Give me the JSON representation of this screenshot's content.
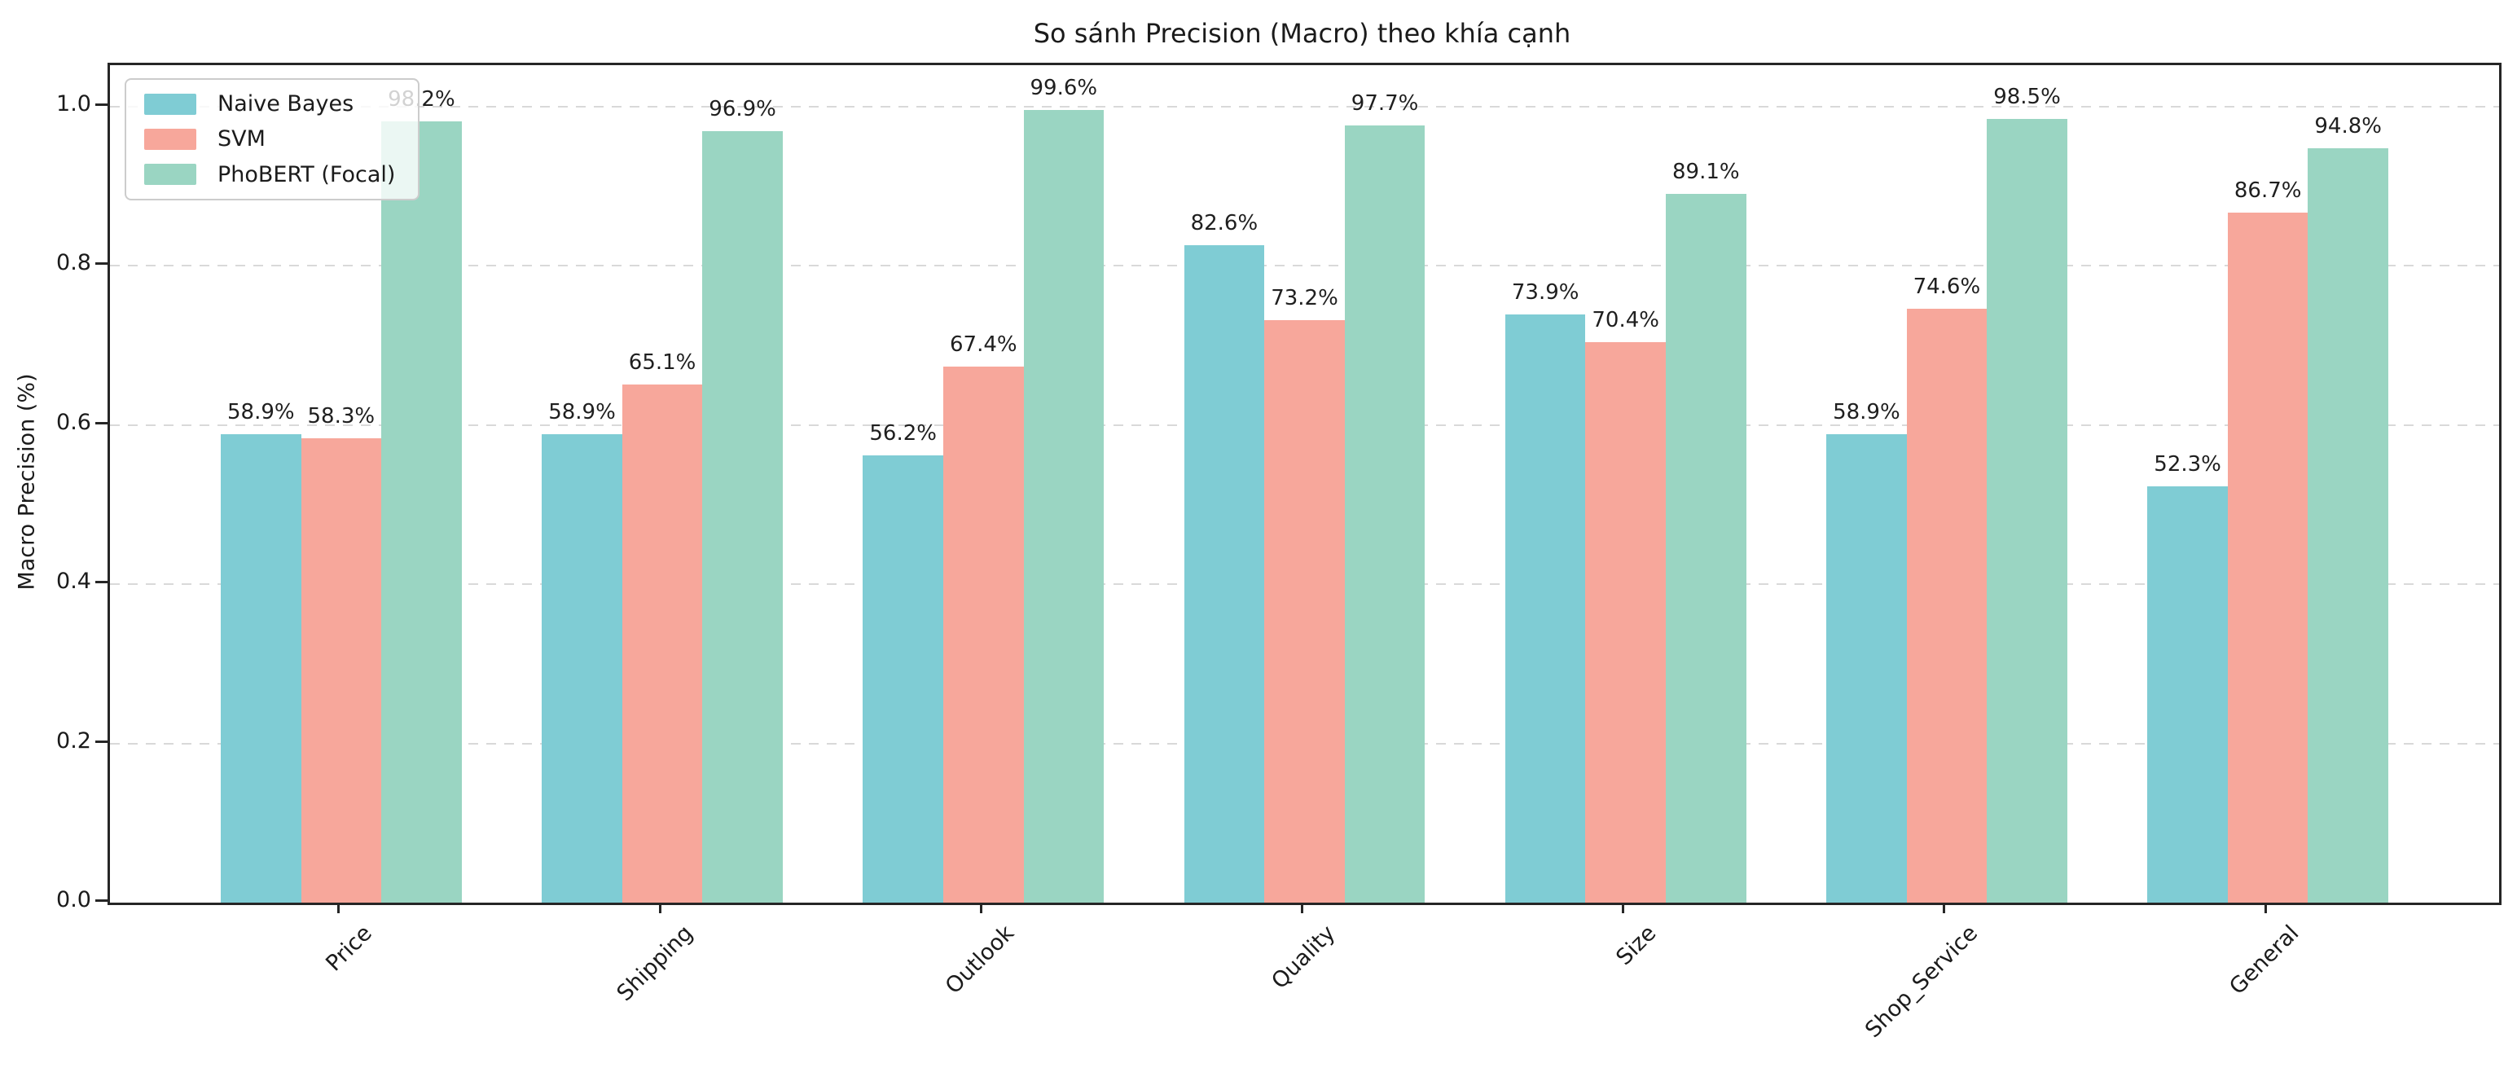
{
  "chart_data": {
    "type": "bar",
    "title": "So sánh Precision (Macro) theo khía cạnh",
    "xlabel": "",
    "ylabel": "Macro Precision (%)",
    "categories": [
      "Price",
      "Shipping",
      "Outlook",
      "Quality",
      "Size",
      "Shop_Service",
      "General"
    ],
    "series": [
      {
        "name": "Naive Bayes",
        "color": "#7FCCD4",
        "values": [
          58.9,
          58.9,
          56.2,
          82.6,
          73.9,
          58.9,
          52.3
        ]
      },
      {
        "name": "SVM",
        "color": "#F7A79B",
        "values": [
          58.3,
          65.1,
          67.4,
          73.2,
          70.4,
          74.6,
          86.7
        ]
      },
      {
        "name": "PhoBERT (Focal)",
        "color": "#9AD5C2",
        "values": [
          98.2,
          96.9,
          99.6,
          97.7,
          89.1,
          98.5,
          94.8
        ]
      }
    ],
    "value_label_suffix": "%",
    "yticks": [
      {
        "value": 0.0,
        "label": "0.0"
      },
      {
        "value": 0.2,
        "label": "0.2"
      },
      {
        "value": 0.4,
        "label": "0.4"
      },
      {
        "value": 0.6,
        "label": "0.6"
      },
      {
        "value": 0.8,
        "label": "0.8"
      },
      {
        "value": 1.0,
        "label": "1.0"
      }
    ],
    "ylim": [
      0,
      1.052
    ],
    "grid": "horizontal-dashed",
    "legend_position": "upper-left",
    "colors": {
      "spine": "#262626",
      "gridline": "#d9d9d9",
      "legend_border": "#cccccc",
      "text": "#1b1b1b"
    }
  }
}
